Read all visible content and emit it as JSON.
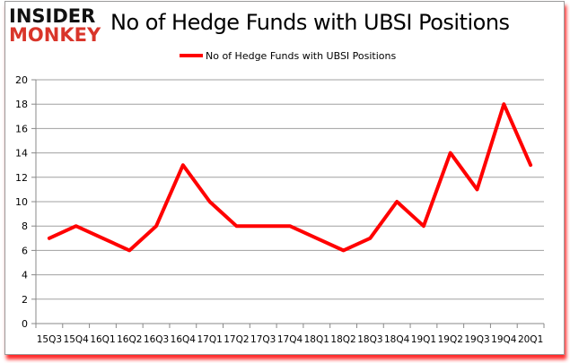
{
  "logo": {
    "line1": "INSIDER",
    "line2": "MONKEY"
  },
  "chart_data": {
    "type": "line",
    "title": "No of Hedge Funds with UBSI Positions",
    "categories": [
      "15Q3",
      "15Q4",
      "16Q1",
      "16Q2",
      "16Q3",
      "16Q4",
      "17Q1",
      "17Q2",
      "17Q3",
      "17Q4",
      "18Q1",
      "18Q2",
      "18Q3",
      "18Q4",
      "19Q1",
      "19Q2",
      "19Q3",
      "19Q4",
      "20Q1"
    ],
    "series": [
      {
        "name": "No of Hedge Funds with UBSI Positions",
        "values": [
          7,
          8,
          7,
          6,
          8,
          13,
          10,
          8,
          8,
          8,
          7,
          6,
          7,
          10,
          8,
          14,
          11,
          18,
          13
        ],
        "color": "#ff0000"
      }
    ],
    "ylim": [
      0,
      20
    ],
    "yticks": [
      0,
      2,
      4,
      6,
      8,
      10,
      12,
      14,
      16,
      18,
      20
    ],
    "grid": true,
    "legend": "top-center"
  }
}
